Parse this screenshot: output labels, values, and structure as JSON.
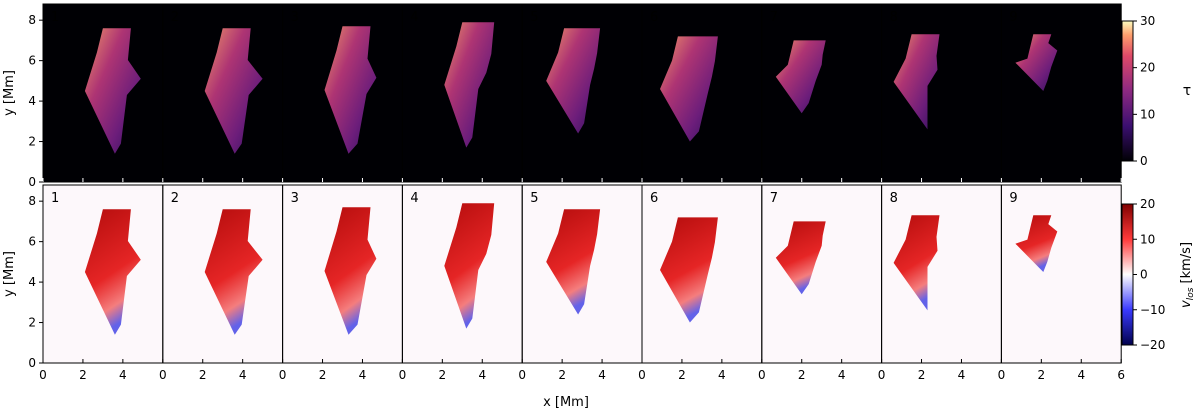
{
  "chart_data": [
    {
      "type": "heatmap",
      "quantity": "τ",
      "panel_labels": [
        "1",
        "2",
        "3",
        "4",
        "5",
        "6",
        "7",
        "8",
        "9"
      ],
      "ylabel": "y [Mm]",
      "xlim": [
        0,
        6
      ],
      "ylim": [
        0,
        8.8
      ],
      "yticks": [
        "0",
        "2",
        "4",
        "6",
        "8"
      ],
      "background": "#000004",
      "colorbar": {
        "label": "τ",
        "range": [
          0,
          30
        ],
        "ticks": [
          "0",
          "10",
          "20",
          "30"
        ],
        "colormap": "magma"
      },
      "regions": [
        {
          "panel": "1",
          "top": 7.6,
          "bottom": 1.4,
          "left_top": 3.0,
          "left_bottom": 3.6,
          "right_top": 4.4,
          "right_mid": 4.9,
          "right_bottom": 4.2,
          "mean_tau": 16
        },
        {
          "panel": "2",
          "top": 7.6,
          "bottom": 1.4,
          "left_top": 3.0,
          "left_bottom": 3.6,
          "right_top": 4.4,
          "right_mid": 5.0,
          "right_bottom": 4.3,
          "mean_tau": 17
        },
        {
          "panel": "3",
          "top": 7.7,
          "bottom": 1.4,
          "left_top": 3.0,
          "left_bottom": 3.3,
          "right_top": 4.4,
          "right_mid": 4.7,
          "right_bottom": 4.2,
          "mean_tau": 18
        },
        {
          "panel": "4",
          "top": 7.9,
          "bottom": 1.7,
          "left_top": 3.0,
          "left_bottom": 3.2,
          "right_top": 4.6,
          "right_mid": 4.2,
          "right_bottom": 3.8,
          "mean_tau": 17
        },
        {
          "panel": "5",
          "top": 7.6,
          "bottom": 2.4,
          "left_top": 2.1,
          "left_bottom": 2.8,
          "right_top": 3.9,
          "right_mid": 3.6,
          "right_bottom": 3.4,
          "mean_tau": 14
        },
        {
          "panel": "6",
          "top": 7.2,
          "bottom": 2.0,
          "left_top": 1.8,
          "left_bottom": 2.4,
          "right_top": 3.8,
          "right_mid": 3.5,
          "right_bottom": 3.3,
          "mean_tau": 13
        },
        {
          "panel": "7",
          "top": 7.0,
          "bottom": 3.4,
          "left_top": 1.6,
          "left_bottom": 2.0,
          "right_top": 3.2,
          "right_mid": 3.0,
          "right_bottom": 2.7,
          "mean_tau": 14
        },
        {
          "panel": "8",
          "top": 7.3,
          "bottom": 2.6,
          "left_top": 1.5,
          "left_bottom": 2.3,
          "right_top": 2.9,
          "right_mid": 2.8,
          "right_bottom": 2.3,
          "mean_tau": 19
        },
        {
          "panel": "9",
          "top": 7.3,
          "bottom": 4.5,
          "left_top": 1.6,
          "left_bottom": 2.1,
          "right_top": 2.5,
          "right_mid": 2.8,
          "right_bottom": 2.5,
          "mean_tau": 24
        }
      ]
    },
    {
      "type": "heatmap",
      "quantity": "v_los",
      "panel_labels": [
        "1",
        "2",
        "3",
        "4",
        "5",
        "6",
        "7",
        "8",
        "9"
      ],
      "xlabel": "x [Mm]",
      "ylabel": "y [Mm]",
      "xlim": [
        0,
        6
      ],
      "ylim": [
        0,
        8.8
      ],
      "xticks": [
        "0",
        "2",
        "4"
      ],
      "last_panel_xticks": [
        "0",
        "2",
        "4",
        "6"
      ],
      "yticks": [
        "0",
        "2",
        "4",
        "6",
        "8"
      ],
      "background": "#fdf8fb",
      "colorbar": {
        "label_main": "v",
        "label_sub": "los",
        "label_unit": " [km/s]",
        "range": [
          -20,
          20
        ],
        "ticks": [
          "20",
          "10",
          "0",
          "−10",
          "−20"
        ],
        "colormap": "seismic"
      },
      "regions": [
        {
          "panel": "1",
          "top": 7.6,
          "bottom": 1.4,
          "left_top": 3.0,
          "left_bottom": 3.6,
          "right_top": 4.4,
          "right_mid": 4.9,
          "right_bottom": 4.2,
          "mean_v": 13
        },
        {
          "panel": "2",
          "top": 7.6,
          "bottom": 1.4,
          "left_top": 3.0,
          "left_bottom": 3.6,
          "right_top": 4.4,
          "right_mid": 5.0,
          "right_bottom": 4.3,
          "mean_v": 14
        },
        {
          "panel": "3",
          "top": 7.7,
          "bottom": 1.4,
          "left_top": 3.0,
          "left_bottom": 3.3,
          "right_top": 4.4,
          "right_mid": 4.7,
          "right_bottom": 4.2,
          "mean_v": 16
        },
        {
          "panel": "4",
          "top": 7.9,
          "bottom": 1.7,
          "left_top": 3.0,
          "left_bottom": 3.2,
          "right_top": 4.6,
          "right_mid": 4.2,
          "right_bottom": 3.8,
          "mean_v": 17
        },
        {
          "panel": "5",
          "top": 7.6,
          "bottom": 2.4,
          "left_top": 2.1,
          "left_bottom": 2.8,
          "right_top": 3.9,
          "right_mid": 3.6,
          "right_bottom": 3.4,
          "mean_v": 18
        },
        {
          "panel": "6",
          "top": 7.2,
          "bottom": 2.0,
          "left_top": 1.8,
          "left_bottom": 2.4,
          "right_top": 3.8,
          "right_mid": 3.5,
          "right_bottom": 3.3,
          "mean_v": 15
        },
        {
          "panel": "7",
          "top": 7.0,
          "bottom": 3.4,
          "left_top": 1.6,
          "left_bottom": 2.0,
          "right_top": 3.2,
          "right_mid": 3.0,
          "right_bottom": 2.7,
          "mean_v": 19
        },
        {
          "panel": "8",
          "top": 7.3,
          "bottom": 2.6,
          "left_top": 1.5,
          "left_bottom": 2.3,
          "right_top": 2.9,
          "right_mid": 2.8,
          "right_bottom": 2.3,
          "mean_v": 18
        },
        {
          "panel": "9",
          "top": 7.3,
          "bottom": 4.5,
          "left_top": 1.6,
          "left_bottom": 2.1,
          "right_top": 2.5,
          "right_mid": 2.8,
          "right_bottom": 2.5,
          "mean_v": 18
        }
      ]
    }
  ]
}
